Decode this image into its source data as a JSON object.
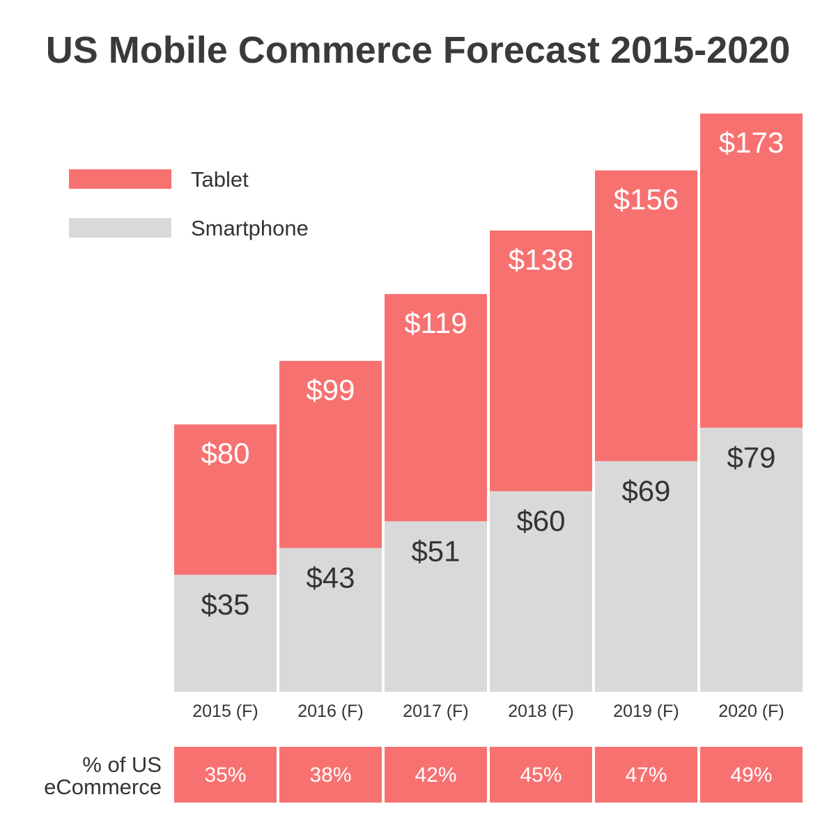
{
  "chart_data": {
    "type": "bar",
    "stacked": true,
    "title": "US Mobile Commerce Forecast 2015-2020",
    "categories": [
      "2015 (F)",
      "2016 (F)",
      "2017 (F)",
      "2018 (F)",
      "2019 (F)",
      "2020 (F)"
    ],
    "series": [
      {
        "name": "Smartphone",
        "values": [
          35,
          43,
          51,
          60,
          69,
          79
        ],
        "labels": [
          "$35",
          "$43",
          "$51",
          "$60",
          "$69",
          "$79"
        ],
        "color": "#d9d9d9",
        "label_color": "#333333"
      },
      {
        "name": "Tablet",
        "values": [
          80,
          99,
          119,
          138,
          156,
          173
        ],
        "labels": [
          "$80",
          "$99",
          "$119",
          "$138",
          "$156",
          "$173"
        ],
        "color": "#f87171",
        "label_color": "#ffffff"
      }
    ],
    "legend": {
      "position": "top-left",
      "items": [
        {
          "name": "Tablet",
          "color": "#f87171"
        },
        {
          "name": "Smartphone",
          "color": "#d9d9d9"
        }
      ]
    },
    "ecommerce_row": {
      "label_line1": "% of US",
      "label_line2": "eCommerce",
      "values": [
        "35%",
        "38%",
        "42%",
        "45%",
        "47%",
        "49%"
      ],
      "color": "#f87171"
    },
    "grid": false
  }
}
